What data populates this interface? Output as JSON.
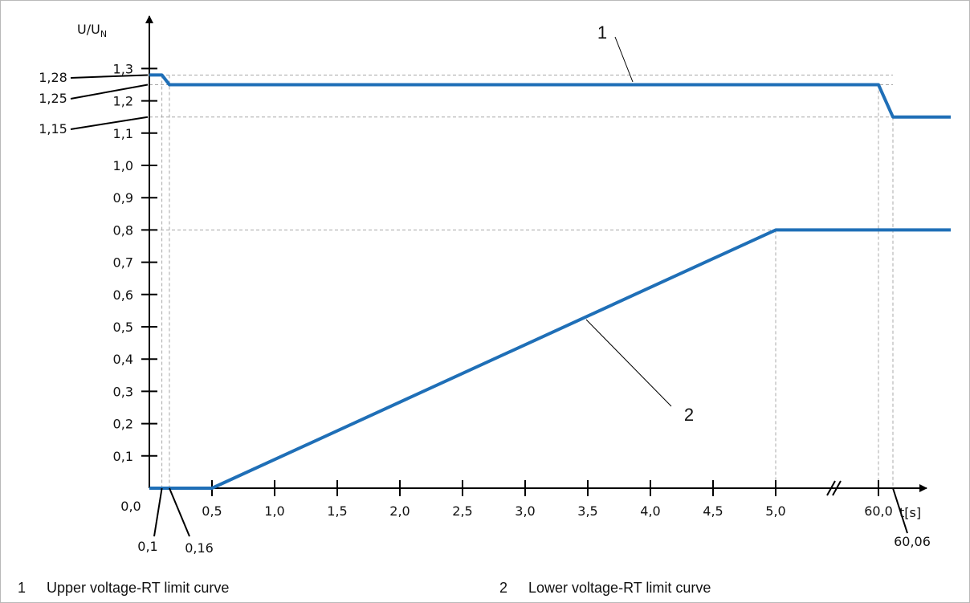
{
  "chart_data": {
    "type": "line",
    "y_title": "U/U",
    "y_title_sub": "N",
    "x_title": "t[s]",
    "x_ticks": [
      {
        "pos": 0.5,
        "label": "0,5"
      },
      {
        "pos": 1.0,
        "label": "1,0"
      },
      {
        "pos": 1.5,
        "label": "1,5"
      },
      {
        "pos": 2.0,
        "label": "2,0"
      },
      {
        "pos": 2.5,
        "label": "2,5"
      },
      {
        "pos": 3.0,
        "label": "3,0"
      },
      {
        "pos": 3.5,
        "label": "3,5"
      },
      {
        "pos": 4.0,
        "label": "4,0"
      },
      {
        "pos": 4.5,
        "label": "4,5"
      },
      {
        "pos": 5.0,
        "label": "5,0"
      },
      {
        "pos": 60.0,
        "label": "60,0"
      }
    ],
    "origin_label": "0,0",
    "y_ticks": [
      {
        "value": 0.1,
        "label": "0,1"
      },
      {
        "value": 0.2,
        "label": "0,2"
      },
      {
        "value": 0.3,
        "label": "0,3"
      },
      {
        "value": 0.4,
        "label": "0,4"
      },
      {
        "value": 0.5,
        "label": "0,5"
      },
      {
        "value": 0.6,
        "label": "0,6"
      },
      {
        "value": 0.7,
        "label": "0,7"
      },
      {
        "value": 0.8,
        "label": "0,8"
      },
      {
        "value": 0.9,
        "label": "0,9"
      },
      {
        "value": 1.0,
        "label": "1,0"
      },
      {
        "value": 1.1,
        "label": "1,1"
      },
      {
        "value": 1.2,
        "label": "1,2"
      },
      {
        "value": 1.3,
        "label": "1,3"
      }
    ],
    "x_annotations": [
      {
        "value": 0.1,
        "label": "0,1"
      },
      {
        "value": 0.16,
        "label": "0,16"
      },
      {
        "value": 60.06,
        "label": "60,06"
      }
    ],
    "y_annotations": [
      {
        "value": 1.28,
        "label": "1,28"
      },
      {
        "value": 1.25,
        "label": "1,25"
      },
      {
        "value": 1.15,
        "label": "1,15"
      }
    ],
    "axis_break": true,
    "series": [
      {
        "id": "1",
        "color": "#1f6fb7",
        "points": [
          [
            0.0,
            1.28
          ],
          [
            0.1,
            1.28
          ],
          [
            0.16,
            1.25
          ],
          [
            60.0,
            1.25
          ],
          [
            60.06,
            1.15
          ],
          [
            60.3,
            1.15
          ]
        ]
      },
      {
        "id": "2",
        "color": "#1f6fb7",
        "points": [
          [
            0.0,
            0.0
          ],
          [
            0.5,
            0.0
          ],
          [
            5.0,
            0.8
          ],
          [
            60.3,
            0.8
          ]
        ]
      }
    ],
    "reference_lines": {
      "horizontal": [
        1.28,
        1.25,
        1.15,
        0.8
      ],
      "vertical": [
        0.1,
        0.16,
        5.0,
        60.0,
        60.06
      ]
    }
  },
  "legend": [
    {
      "num": "1",
      "text": "Upper voltage-RT limit curve"
    },
    {
      "num": "2",
      "text": "Lower voltage-RT limit curve"
    }
  ]
}
